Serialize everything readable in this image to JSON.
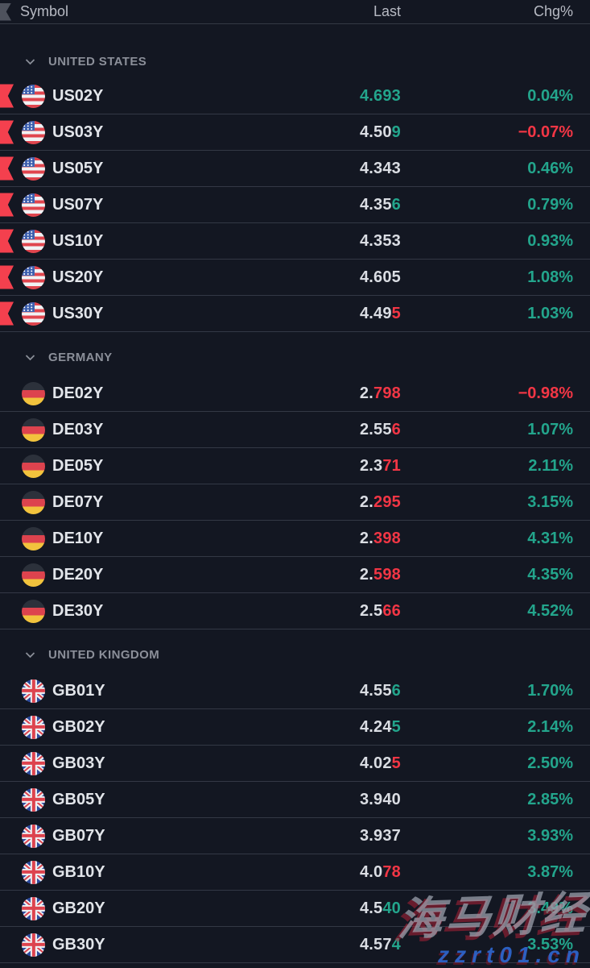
{
  "header": {
    "symbol_label": "Symbol",
    "last_label": "Last",
    "chg_label": "Chg%"
  },
  "icons": {
    "flag_column": "flag-ribbon",
    "group_chevron": "chevron-down",
    "row_marker": "red-flag-ribbon"
  },
  "colors": {
    "background": "#131722",
    "divider": "#333845",
    "header_text": "#b7bac3",
    "group_label": "#8b8f99",
    "symbol_text": "#e2e5ea",
    "value_neutral": "#dadde3",
    "up": "#23a58c",
    "down": "#f23645",
    "flag_marker": "#f4404e"
  },
  "groups": [
    {
      "label": "UNITED STATES",
      "rows": [
        {
          "symbol": "US02Y",
          "flag": "us",
          "flagged": true,
          "last": [
            {
              "t": "4.693",
              "c": "up"
            }
          ],
          "last_plain": "4.693",
          "chg": "0.04%",
          "dir": "up"
        },
        {
          "symbol": "US03Y",
          "flag": "us",
          "flagged": true,
          "last": [
            {
              "t": "4.50",
              "c": "n"
            },
            {
              "t": "9",
              "c": "up"
            }
          ],
          "last_plain": "4.509",
          "chg": "−0.07%",
          "dir": "down"
        },
        {
          "symbol": "US05Y",
          "flag": "us",
          "flagged": true,
          "last": [
            {
              "t": "4.343",
              "c": "n"
            }
          ],
          "last_plain": "4.343",
          "chg": "0.46%",
          "dir": "up"
        },
        {
          "symbol": "US07Y",
          "flag": "us",
          "flagged": true,
          "last": [
            {
              "t": "4.35",
              "c": "n"
            },
            {
              "t": "6",
              "c": "up"
            }
          ],
          "last_plain": "4.356",
          "chg": "0.79%",
          "dir": "up"
        },
        {
          "symbol": "US10Y",
          "flag": "us",
          "flagged": true,
          "last": [
            {
              "t": "4.353",
              "c": "n"
            }
          ],
          "last_plain": "4.353",
          "chg": "0.93%",
          "dir": "up"
        },
        {
          "symbol": "US20Y",
          "flag": "us",
          "flagged": true,
          "last": [
            {
              "t": "4.605",
              "c": "n"
            }
          ],
          "last_plain": "4.605",
          "chg": "1.08%",
          "dir": "up"
        },
        {
          "symbol": "US30Y",
          "flag": "us",
          "flagged": true,
          "last": [
            {
              "t": "4.49",
              "c": "n"
            },
            {
              "t": "5",
              "c": "down"
            }
          ],
          "last_plain": "4.495",
          "chg": "1.03%",
          "dir": "up"
        }
      ]
    },
    {
      "label": "GERMANY",
      "rows": [
        {
          "symbol": "DE02Y",
          "flag": "de",
          "flagged": false,
          "last": [
            {
              "t": "2.",
              "c": "n"
            },
            {
              "t": "798",
              "c": "down"
            }
          ],
          "last_plain": "2.798",
          "chg": "−0.98%",
          "dir": "down"
        },
        {
          "symbol": "DE03Y",
          "flag": "de",
          "flagged": false,
          "last": [
            {
              "t": "2.55",
              "c": "n"
            },
            {
              "t": "6",
              "c": "down"
            }
          ],
          "last_plain": "2.556",
          "chg": "1.07%",
          "dir": "up"
        },
        {
          "symbol": "DE05Y",
          "flag": "de",
          "flagged": false,
          "last": [
            {
              "t": "2.3",
              "c": "n"
            },
            {
              "t": "71",
              "c": "down"
            }
          ],
          "last_plain": "2.371",
          "chg": "2.11%",
          "dir": "up"
        },
        {
          "symbol": "DE07Y",
          "flag": "de",
          "flagged": false,
          "last": [
            {
              "t": "2.",
              "c": "n"
            },
            {
              "t": "295",
              "c": "down"
            }
          ],
          "last_plain": "2.295",
          "chg": "3.15%",
          "dir": "up"
        },
        {
          "symbol": "DE10Y",
          "flag": "de",
          "flagged": false,
          "last": [
            {
              "t": "2.",
              "c": "n"
            },
            {
              "t": "398",
              "c": "down"
            }
          ],
          "last_plain": "2.398",
          "chg": "4.31%",
          "dir": "up"
        },
        {
          "symbol": "DE20Y",
          "flag": "de",
          "flagged": false,
          "last": [
            {
              "t": "2.",
              "c": "n"
            },
            {
              "t": "598",
              "c": "down"
            }
          ],
          "last_plain": "2.598",
          "chg": "4.35%",
          "dir": "up"
        },
        {
          "symbol": "DE30Y",
          "flag": "de",
          "flagged": false,
          "last": [
            {
              "t": "2.5",
              "c": "n"
            },
            {
              "t": "66",
              "c": "down"
            }
          ],
          "last_plain": "2.566",
          "chg": "4.52%",
          "dir": "up"
        }
      ]
    },
    {
      "label": "UNITED KINGDOM",
      "rows": [
        {
          "symbol": "GB01Y",
          "flag": "gb",
          "flagged": false,
          "last": [
            {
              "t": "4.55",
              "c": "n"
            },
            {
              "t": "6",
              "c": "up"
            }
          ],
          "last_plain": "4.556",
          "chg": "1.70%",
          "dir": "up"
        },
        {
          "symbol": "GB02Y",
          "flag": "gb",
          "flagged": false,
          "last": [
            {
              "t": "4.24",
              "c": "n"
            },
            {
              "t": "5",
              "c": "up"
            }
          ],
          "last_plain": "4.245",
          "chg": "2.14%",
          "dir": "up"
        },
        {
          "symbol": "GB03Y",
          "flag": "gb",
          "flagged": false,
          "last": [
            {
              "t": "4.02",
              "c": "n"
            },
            {
              "t": "5",
              "c": "down"
            }
          ],
          "last_plain": "4.025",
          "chg": "2.50%",
          "dir": "up"
        },
        {
          "symbol": "GB05Y",
          "flag": "gb",
          "flagged": false,
          "last": [
            {
              "t": "3.940",
              "c": "n"
            }
          ],
          "last_plain": "3.940",
          "chg": "2.85%",
          "dir": "up"
        },
        {
          "symbol": "GB07Y",
          "flag": "gb",
          "flagged": false,
          "last": [
            {
              "t": "3.937",
              "c": "n"
            }
          ],
          "last_plain": "3.937",
          "chg": "3.93%",
          "dir": "up"
        },
        {
          "symbol": "GB10Y",
          "flag": "gb",
          "flagged": false,
          "last": [
            {
              "t": "4.0",
              "c": "n"
            },
            {
              "t": "78",
              "c": "down"
            }
          ],
          "last_plain": "4.078",
          "chg": "3.87%",
          "dir": "up"
        },
        {
          "symbol": "GB20Y",
          "flag": "gb",
          "flagged": false,
          "last": [
            {
              "t": "4.5",
              "c": "n"
            },
            {
              "t": "40",
              "c": "up"
            }
          ],
          "last_plain": "4.540",
          "chg": "3.49%",
          "dir": "up"
        },
        {
          "symbol": "GB30Y",
          "flag": "gb",
          "flagged": false,
          "last": [
            {
              "t": "4.57",
              "c": "n"
            },
            {
              "t": "4",
              "c": "up"
            }
          ],
          "last_plain": "4.574",
          "chg": "3.53%",
          "dir": "up"
        }
      ]
    }
  ],
  "watermark": {
    "title": "海马财经",
    "url": "zzrt01.cn"
  }
}
